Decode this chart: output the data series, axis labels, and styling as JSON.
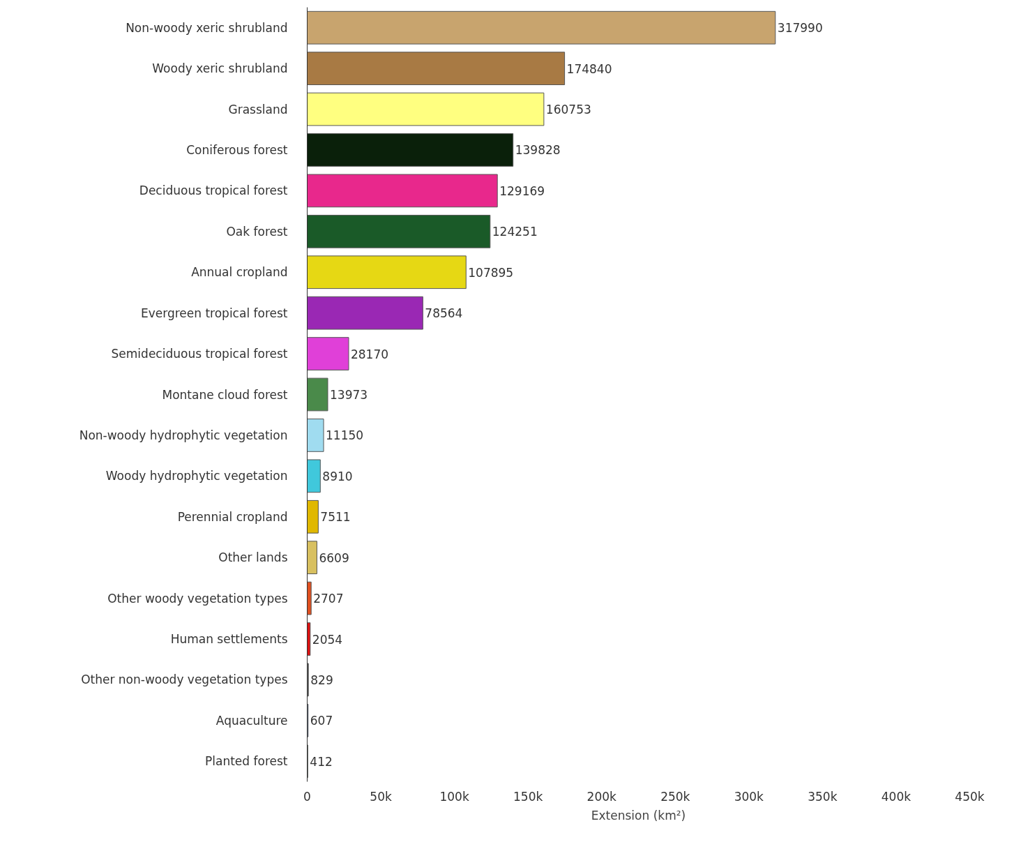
{
  "chart_data": {
    "type": "bar",
    "orientation": "horizontal",
    "xlabel": "Extension (km²)",
    "categories": [
      "Non-woody xeric shrubland",
      "Woody xeric shrubland",
      "Grassland",
      "Coniferous forest",
      "Deciduous tropical forest",
      "Oak forest",
      "Annual cropland",
      "Evergreen tropical forest",
      "Semideciduous tropical forest",
      "Montane cloud forest",
      "Non-woody hydrophytic vegetation",
      "Woody hydrophytic vegetation",
      "Perennial cropland",
      "Other lands",
      "Other woody vegetation types",
      "Human settlements",
      "Other non-woody vegetation types",
      "Aquaculture",
      "Planted forest"
    ],
    "values": [
      317990,
      174840,
      160753,
      139828,
      129169,
      124251,
      107895,
      78564,
      28170,
      13973,
      11150,
      8910,
      7511,
      6609,
      2707,
      2054,
      829,
      607,
      412
    ],
    "colors": [
      "#c8a46e",
      "#a87a44",
      "#ffff80",
      "#0a200a",
      "#e8288c",
      "#1a5a28",
      "#e6d814",
      "#9a28b4",
      "#e040d8",
      "#4a8a4a",
      "#a0dcf0",
      "#40c8dc",
      "#e0b800",
      "#d8c060",
      "#e05020",
      "#e01010",
      "#606060",
      "#4060a0",
      "#408040"
    ],
    "xlim": [
      0,
      450000
    ],
    "xticks": [
      0,
      {
        "value": 50000,
        "label": "50k"
      },
      {
        "value": 100000,
        "label": "100k"
      },
      {
        "value": 150000,
        "label": "150k"
      },
      {
        "value": 200000,
        "label": "200k"
      },
      {
        "value": 250000,
        "label": "250k"
      },
      {
        "value": 300000,
        "label": "300k"
      },
      {
        "value": 350000,
        "label": "350k"
      },
      {
        "value": 400000,
        "label": "400k"
      },
      {
        "value": 450000,
        "label": "450k"
      }
    ],
    "data_labels": true,
    "grid": false
  }
}
